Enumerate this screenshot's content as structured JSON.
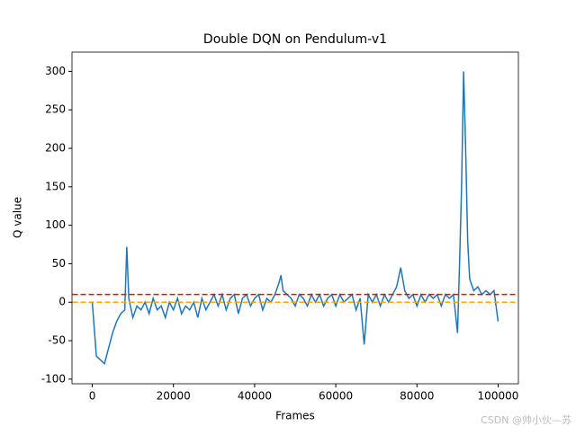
{
  "chart_data": {
    "type": "line",
    "title": "Double DQN on Pendulum-v1",
    "xlabel": "Frames",
    "ylabel": "Q value",
    "x": [
      0,
      1000,
      2000,
      3000,
      4000,
      5000,
      6000,
      7000,
      8000,
      8500,
      9000,
      10000,
      11000,
      12000,
      13000,
      14000,
      15000,
      16000,
      17000,
      18000,
      19000,
      20000,
      21000,
      22000,
      23000,
      24000,
      25000,
      26000,
      27000,
      28000,
      29000,
      30000,
      31000,
      32000,
      33000,
      34000,
      35000,
      36000,
      37000,
      38000,
      39000,
      40000,
      41000,
      42000,
      43000,
      44000,
      45000,
      46000,
      46500,
      47000,
      48000,
      49000,
      50000,
      51000,
      52000,
      53000,
      54000,
      55000,
      56000,
      57000,
      58000,
      59000,
      60000,
      61000,
      62000,
      63000,
      64000,
      65000,
      66000,
      67000,
      68000,
      69000,
      70000,
      71000,
      72000,
      73000,
      74000,
      75000,
      76000,
      77000,
      78000,
      79000,
      80000,
      81000,
      82000,
      83000,
      84000,
      85000,
      86000,
      87000,
      88000,
      89000,
      90000,
      90500,
      91000,
      91500,
      92000,
      92500,
      93000,
      94000,
      95000,
      96000,
      97000,
      98000,
      99000,
      100000
    ],
    "series": [
      {
        "name": "Q value",
        "color": "#1f77b4",
        "values": [
          0,
          -70,
          -75,
          -80,
          -60,
          -40,
          -25,
          -15,
          -10,
          72,
          5,
          -20,
          -5,
          -10,
          0,
          -15,
          5,
          -10,
          -5,
          -20,
          0,
          -10,
          5,
          -15,
          -5,
          -10,
          0,
          -20,
          5,
          -10,
          0,
          10,
          -5,
          10,
          -10,
          5,
          10,
          -15,
          5,
          10,
          -5,
          5,
          10,
          -10,
          5,
          0,
          10,
          25,
          35,
          15,
          10,
          5,
          -5,
          10,
          5,
          -5,
          10,
          0,
          10,
          -5,
          5,
          10,
          -5,
          10,
          0,
          5,
          10,
          -10,
          5,
          -55,
          10,
          0,
          10,
          -5,
          10,
          0,
          10,
          20,
          45,
          15,
          5,
          10,
          -5,
          10,
          0,
          10,
          5,
          10,
          -5,
          10,
          5,
          10,
          -40,
          50,
          150,
          300,
          200,
          80,
          30,
          15,
          20,
          10,
          15,
          10,
          15,
          -25
        ]
      }
    ],
    "hlines": [
      {
        "value": 10,
        "color": "red"
      },
      {
        "value": 0,
        "color": "orange"
      }
    ],
    "hline_xrange": [
      0,
      100000
    ],
    "xlim": [
      -5000,
      105000
    ],
    "ylim": [
      -106,
      325
    ],
    "xticks": [
      0,
      20000,
      40000,
      60000,
      80000,
      100000
    ],
    "yticks": [
      -100,
      -50,
      0,
      50,
      100,
      150,
      200,
      250,
      300
    ],
    "watermark": "CSDN @帅小伙—苏"
  }
}
